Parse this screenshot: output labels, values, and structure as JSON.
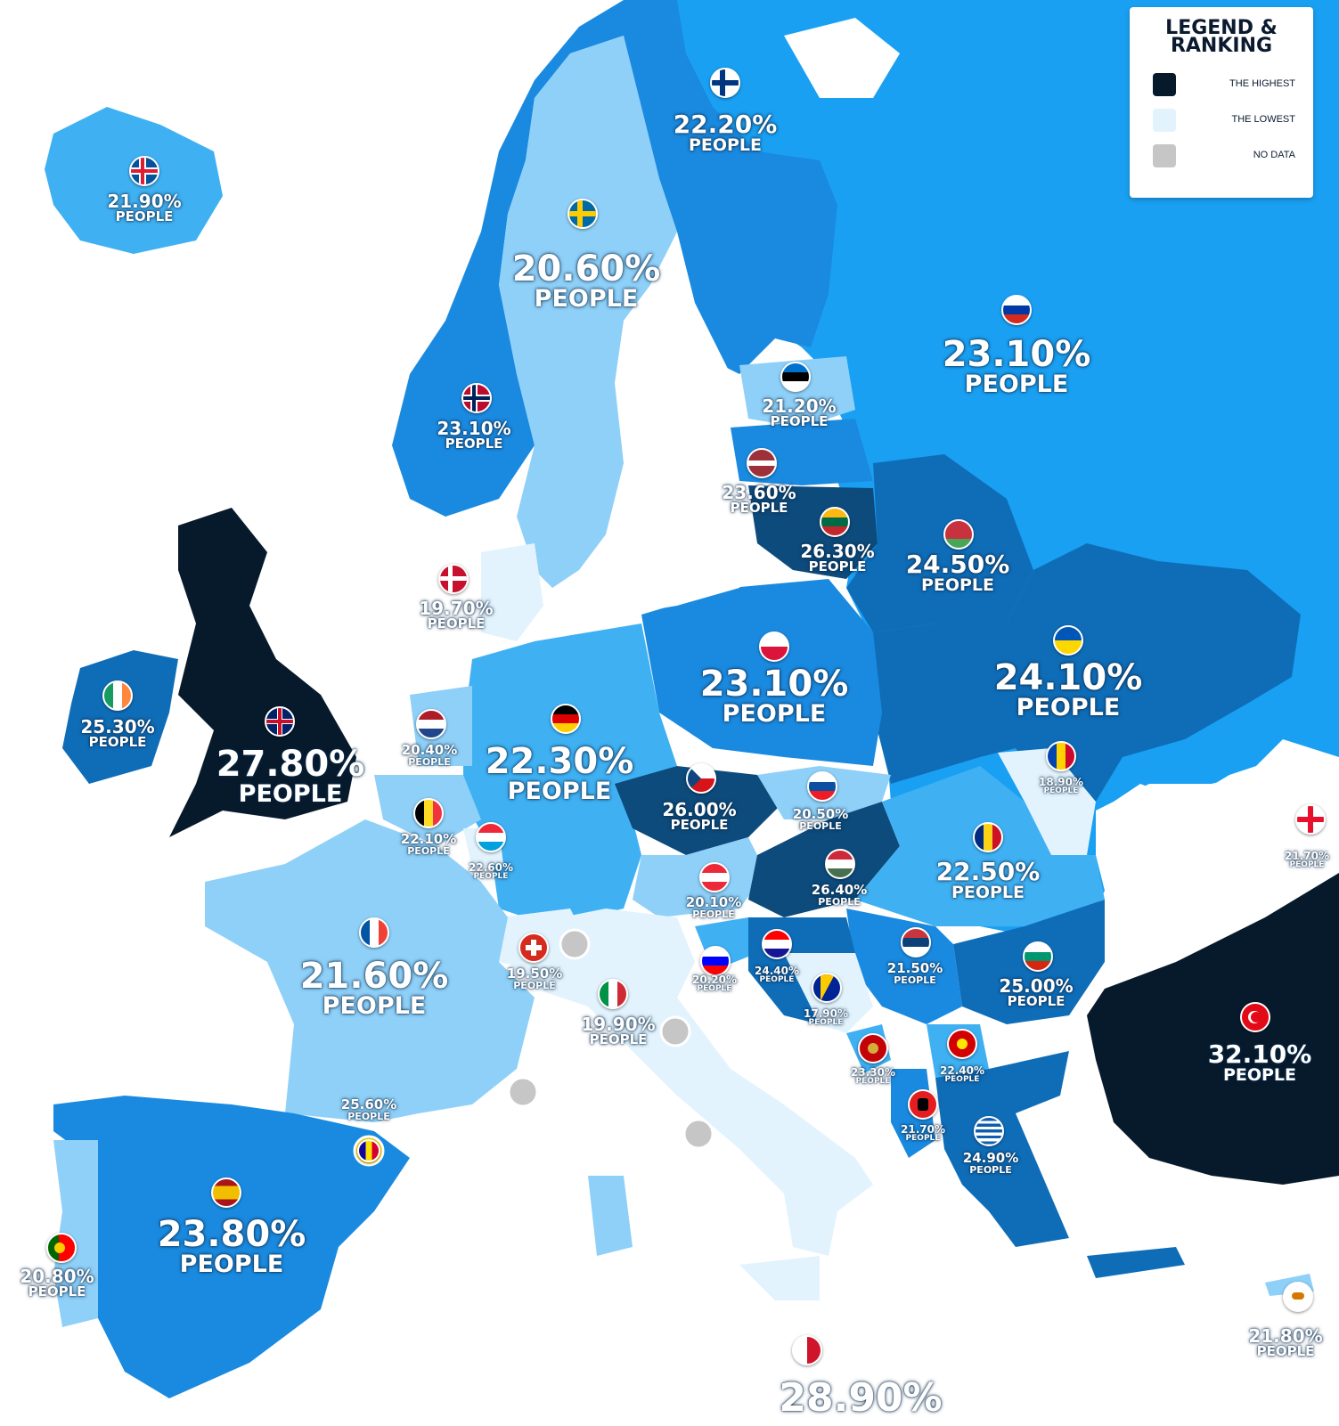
{
  "legend": {
    "title_line1": "LEGEND &",
    "title_line2": "RANKING",
    "items": [
      {
        "label": "THE HIGHEST",
        "color": "#071a2c"
      },
      {
        "label": "THE LOWEST",
        "color": "#e2f3fd"
      },
      {
        "label": "NO DATA",
        "color": "#c6c6c6"
      }
    ]
  },
  "unit_label": "PEOPLE",
  "colors": {
    "sea": "#ffffff",
    "background_land": "#1aa0f2",
    "shade_1": "#e2f3fd",
    "shade_2": "#8fd0f8",
    "shade_3": "#3fb1f3",
    "shade_4": "#1a8ae0",
    "shade_5": "#0f6db8",
    "shade_6": "#0d4b7c",
    "shade_highest": "#071a2c",
    "no_data": "#c6c6c6"
  },
  "countries": {
    "iceland": {
      "value": "21.90%",
      "flag": "iceland-flag"
    },
    "finland": {
      "value": "22.20%",
      "flag": "finland-flag"
    },
    "sweden": {
      "value": "20.60%",
      "flag": "sweden-flag"
    },
    "norway": {
      "value": "23.10%",
      "flag": "norway-flag"
    },
    "russia": {
      "value": "23.10%",
      "flag": "russia-flag"
    },
    "estonia": {
      "value": "21.20%",
      "flag": "estonia-flag"
    },
    "latvia": {
      "value": "23.60%",
      "flag": "latvia-flag"
    },
    "lithuania": {
      "value": "26.30%",
      "flag": "lithuania-flag"
    },
    "belarus": {
      "value": "24.50%",
      "flag": "belarus-flag"
    },
    "denmark": {
      "value": "19.70%",
      "flag": "denmark-flag"
    },
    "ireland": {
      "value": "25.30%",
      "flag": "ireland-flag"
    },
    "uk": {
      "value": "27.80%",
      "flag": "uk-flag"
    },
    "netherlands": {
      "value": "20.40%",
      "flag": "netherlands-flag"
    },
    "germany": {
      "value": "22.30%",
      "flag": "germany-flag"
    },
    "poland": {
      "value": "23.10%",
      "flag": "poland-flag"
    },
    "ukraine": {
      "value": "24.10%",
      "flag": "ukraine-flag"
    },
    "moldova": {
      "value": "18.90%",
      "flag": "moldova-flag"
    },
    "belgium": {
      "value": "22.10%",
      "flag": "belgium-flag"
    },
    "luxembourg": {
      "value": "22.60%",
      "flag": "luxembourg-flag"
    },
    "czechia": {
      "value": "26.00%",
      "flag": "czechia-flag"
    },
    "slovakia": {
      "value": "20.50%",
      "flag": "slovakia-flag"
    },
    "georgia": {
      "value": "21.70%",
      "flag": "georgia-flag"
    },
    "austria": {
      "value": "20.10%",
      "flag": "austria-flag"
    },
    "hungary": {
      "value": "26.40%",
      "flag": "hungary-flag"
    },
    "romania": {
      "value": "22.50%",
      "flag": "romania-flag"
    },
    "france": {
      "value": "21.60%",
      "flag": "france-flag"
    },
    "switzerland": {
      "value": "19.50%",
      "flag": "switzerland-flag"
    },
    "slovenia": {
      "value": "20.20%",
      "flag": "slovenia-flag"
    },
    "croatia": {
      "value": "24.40%",
      "flag": "croatia-flag"
    },
    "serbia": {
      "value": "21.50%",
      "flag": "serbia-flag"
    },
    "bulgaria": {
      "value": "25.00%",
      "flag": "bulgaria-flag"
    },
    "italy": {
      "value": "19.90%",
      "flag": "italy-flag"
    },
    "bosnia": {
      "value": "17.90%",
      "flag": "bosnia-flag"
    },
    "montenegro": {
      "value": "23.30%",
      "flag": "montenegro-flag"
    },
    "north_macedonia": {
      "value": "22.40%",
      "flag": "north-macedonia-flag"
    },
    "turkey": {
      "value": "32.10%",
      "flag": "turkey-flag"
    },
    "andorra": {
      "value": "25.60%",
      "flag": "andorra-flag"
    },
    "albania": {
      "value": "21.70%",
      "flag": "albania-flag"
    },
    "greece": {
      "value": "24.90%",
      "flag": "greece-flag"
    },
    "spain": {
      "value": "23.80%",
      "flag": "spain-flag"
    },
    "portugal": {
      "value": "20.80%",
      "flag": "portugal-flag"
    },
    "cyprus": {
      "value": "21.80%",
      "flag": "cyprus-flag"
    },
    "malta": {
      "value": "28.90%",
      "flag": "malta-flag"
    }
  }
}
